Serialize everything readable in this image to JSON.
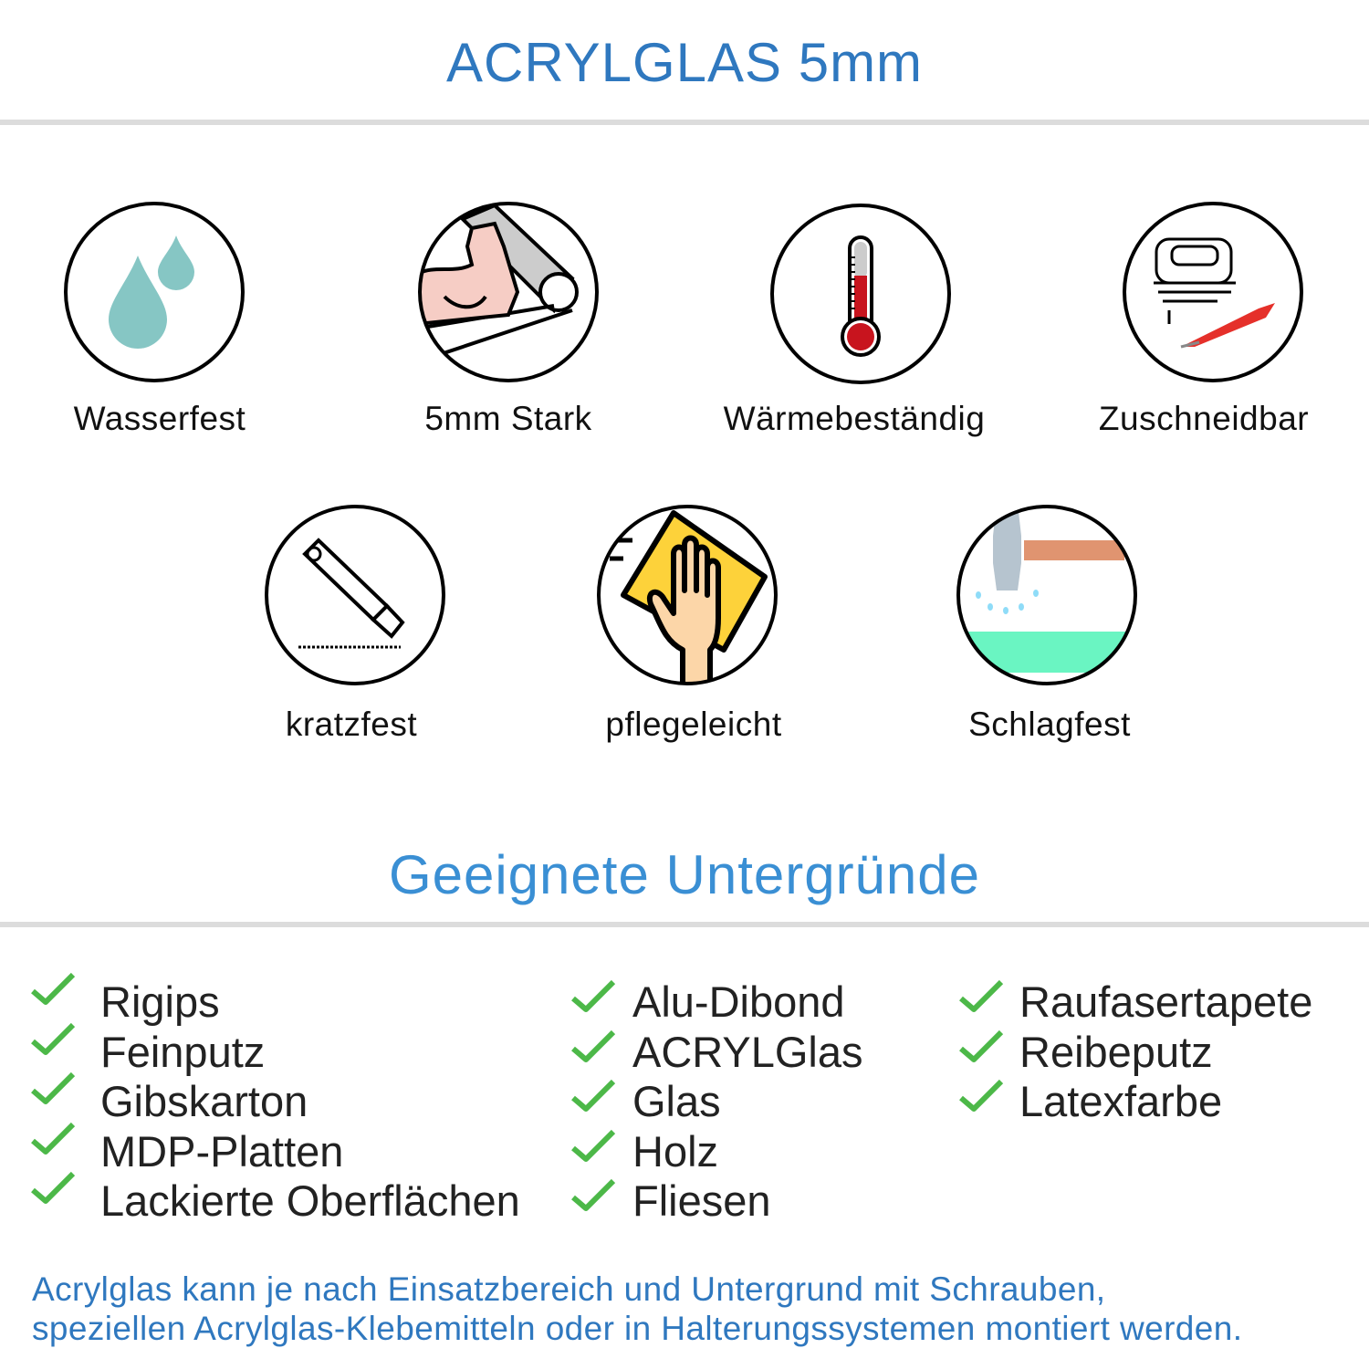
{
  "header": {
    "title": "ACRYLGLAS 5mm"
  },
  "features": [
    {
      "label": "Wasserfest",
      "icon": "water-drops-icon"
    },
    {
      "label": "5mm Stark",
      "icon": "flexed-arm-icon"
    },
    {
      "label": "Wärmebeständig",
      "icon": "thermometer-icon"
    },
    {
      "label": "Zuschneidbar",
      "icon": "jigsaw-icon"
    },
    {
      "label": "kratzfest",
      "icon": "cutter-knife-icon"
    },
    {
      "label": "pflegeleicht",
      "icon": "cleaning-hand-icon"
    },
    {
      "label": "Schlagfest",
      "icon": "hammer-icon"
    }
  ],
  "surfaces": {
    "title": "Geeignete Untergründe",
    "col1": [
      "Rigips",
      "Feinputz",
      "Gibskarton",
      "MDP-Platten",
      "Lackierte Oberflächen"
    ],
    "col2": [
      "Alu-Dibond",
      "ACRYLGlas",
      "Glas",
      "Holz",
      "Fliesen"
    ],
    "col3": [
      "Raufasertapete",
      "Reibeputz",
      "Latexfarbe"
    ]
  },
  "footer": {
    "line1": "Acrylglas kann je nach Einsatzbereich und Untergrund mit Schrauben,",
    "line2": "speziellen Acrylglas-Klebemitteln oder in Halterungssystemen montiert werden."
  },
  "colors": {
    "title": "#2f78bf",
    "subtitle": "#3a8fd4",
    "check": "#4cb848",
    "rule": "#dcdcdc"
  }
}
